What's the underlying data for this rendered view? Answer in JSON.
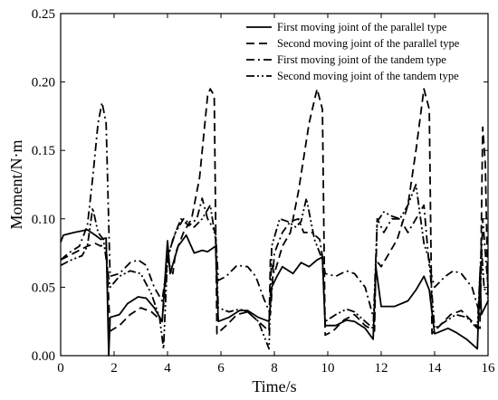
{
  "chart_data": {
    "type": "line",
    "xlabel": "Time/s",
    "ylabel": "Moment/N·m",
    "xlim": [
      0,
      16
    ],
    "ylim": [
      0,
      0.25
    ],
    "xticks": [
      "0",
      "2",
      "4",
      "6",
      "8",
      "10",
      "12",
      "14",
      "16"
    ],
    "yticks": [
      "0.00",
      "0.05",
      "0.10",
      "0.15",
      "0.20",
      "0.25"
    ],
    "grid": false,
    "legend_position": "top-right",
    "series": [
      {
        "name": "First moving joint of the parallel type",
        "style": "solid",
        "points": [
          [
            0,
            0.083
          ],
          [
            0.1,
            0.088
          ],
          [
            0.5,
            0.09
          ],
          [
            1.0,
            0.092
          ],
          [
            1.3,
            0.088
          ],
          [
            1.5,
            0.085
          ],
          [
            1.7,
            0.086
          ],
          [
            1.8,
            0.0
          ],
          [
            1.85,
            0.028
          ],
          [
            2.2,
            0.03
          ],
          [
            2.5,
            0.038
          ],
          [
            2.9,
            0.043
          ],
          [
            3.2,
            0.042
          ],
          [
            3.5,
            0.035
          ],
          [
            3.8,
            0.025
          ],
          [
            4.0,
            0.084
          ],
          [
            4.1,
            0.06
          ],
          [
            4.4,
            0.08
          ],
          [
            4.7,
            0.088
          ],
          [
            5.0,
            0.075
          ],
          [
            5.3,
            0.077
          ],
          [
            5.5,
            0.076
          ],
          [
            5.8,
            0.08
          ],
          [
            5.9,
            0.025
          ],
          [
            6.3,
            0.028
          ],
          [
            6.7,
            0.033
          ],
          [
            7.0,
            0.033
          ],
          [
            7.4,
            0.028
          ],
          [
            7.8,
            0.025
          ],
          [
            7.9,
            0.05
          ],
          [
            8.1,
            0.058
          ],
          [
            8.3,
            0.065
          ],
          [
            8.7,
            0.06
          ],
          [
            9.0,
            0.068
          ],
          [
            9.3,
            0.065
          ],
          [
            9.6,
            0.07
          ],
          [
            9.8,
            0.072
          ],
          [
            9.9,
            0.022
          ],
          [
            10.3,
            0.022
          ],
          [
            10.7,
            0.026
          ],
          [
            11.0,
            0.025
          ],
          [
            11.4,
            0.02
          ],
          [
            11.7,
            0.012
          ],
          [
            11.8,
            0.065
          ],
          [
            12.0,
            0.036
          ],
          [
            12.5,
            0.036
          ],
          [
            13.0,
            0.04
          ],
          [
            13.3,
            0.048
          ],
          [
            13.6,
            0.058
          ],
          [
            13.8,
            0.048
          ],
          [
            14.0,
            0.016
          ],
          [
            14.5,
            0.02
          ],
          [
            14.8,
            0.017
          ],
          [
            15.2,
            0.012
          ],
          [
            15.6,
            0.005
          ],
          [
            15.7,
            0.06
          ],
          [
            15.75,
            0.03
          ],
          [
            16,
            0.04
          ]
        ]
      },
      {
        "name": "Second moving joint of the parallel type",
        "style": "dash",
        "points": [
          [
            0,
            0.07
          ],
          [
            0.5,
            0.075
          ],
          [
            1.0,
            0.08
          ],
          [
            1.3,
            0.082
          ],
          [
            1.5,
            0.08
          ],
          [
            1.7,
            0.083
          ],
          [
            1.85,
            0.018
          ],
          [
            2.2,
            0.022
          ],
          [
            2.6,
            0.03
          ],
          [
            3.0,
            0.035
          ],
          [
            3.4,
            0.032
          ],
          [
            3.8,
            0.025
          ],
          [
            4.0,
            0.07
          ],
          [
            4.2,
            0.06
          ],
          [
            4.3,
            0.075
          ],
          [
            4.6,
            0.09
          ],
          [
            4.9,
            0.1
          ],
          [
            5.2,
            0.13
          ],
          [
            5.5,
            0.19
          ],
          [
            5.6,
            0.195
          ],
          [
            5.75,
            0.19
          ],
          [
            5.85,
            0.016
          ],
          [
            6.2,
            0.022
          ],
          [
            6.6,
            0.03
          ],
          [
            7.0,
            0.032
          ],
          [
            7.4,
            0.025
          ],
          [
            7.8,
            0.018
          ],
          [
            7.85,
            0.07
          ],
          [
            8.0,
            0.06
          ],
          [
            8.3,
            0.08
          ],
          [
            8.6,
            0.09
          ],
          [
            8.9,
            0.12
          ],
          [
            9.3,
            0.17
          ],
          [
            9.6,
            0.195
          ],
          [
            9.8,
            0.18
          ],
          [
            9.9,
            0.015
          ],
          [
            10.2,
            0.018
          ],
          [
            10.6,
            0.026
          ],
          [
            11.0,
            0.03
          ],
          [
            11.4,
            0.022
          ],
          [
            11.75,
            0.018
          ],
          [
            11.8,
            0.07
          ],
          [
            12.0,
            0.065
          ],
          [
            12.3,
            0.075
          ],
          [
            12.6,
            0.085
          ],
          [
            13.0,
            0.11
          ],
          [
            13.3,
            0.15
          ],
          [
            13.6,
            0.195
          ],
          [
            13.8,
            0.18
          ],
          [
            13.9,
            0.016
          ],
          [
            14.2,
            0.022
          ],
          [
            14.6,
            0.03
          ],
          [
            15.0,
            0.033
          ],
          [
            15.4,
            0.025
          ],
          [
            15.7,
            0.02
          ],
          [
            15.8,
            0.167
          ],
          [
            15.9,
            0.14
          ],
          [
            16,
            0.04
          ]
        ]
      },
      {
        "name": "First moving joint of the tandem type",
        "style": "dashdot",
        "points": [
          [
            0,
            0.07
          ],
          [
            0.3,
            0.075
          ],
          [
            0.7,
            0.08
          ],
          [
            1.0,
            0.095
          ],
          [
            1.2,
            0.13
          ],
          [
            1.4,
            0.17
          ],
          [
            1.55,
            0.185
          ],
          [
            1.7,
            0.17
          ],
          [
            1.85,
            0.058
          ],
          [
            2.2,
            0.06
          ],
          [
            2.6,
            0.068
          ],
          [
            2.9,
            0.07
          ],
          [
            3.2,
            0.066
          ],
          [
            3.5,
            0.05
          ],
          [
            3.8,
            0.04
          ],
          [
            4.0,
            0.07
          ],
          [
            4.2,
            0.085
          ],
          [
            4.5,
            0.1
          ],
          [
            4.8,
            0.095
          ],
          [
            5.1,
            0.1
          ],
          [
            5.3,
            0.115
          ],
          [
            5.5,
            0.1
          ],
          [
            5.8,
            0.09
          ],
          [
            5.9,
            0.055
          ],
          [
            6.2,
            0.058
          ],
          [
            6.6,
            0.066
          ],
          [
            7.0,
            0.065
          ],
          [
            7.3,
            0.058
          ],
          [
            7.6,
            0.042
          ],
          [
            7.85,
            0.03
          ],
          [
            8.0,
            0.075
          ],
          [
            8.3,
            0.09
          ],
          [
            8.6,
            0.098
          ],
          [
            8.9,
            0.1
          ],
          [
            9.1,
            0.09
          ],
          [
            9.4,
            0.09
          ],
          [
            9.7,
            0.085
          ],
          [
            9.9,
            0.06
          ],
          [
            10.3,
            0.058
          ],
          [
            10.7,
            0.062
          ],
          [
            11.0,
            0.06
          ],
          [
            11.4,
            0.05
          ],
          [
            11.75,
            0.025
          ],
          [
            11.85,
            0.1
          ],
          [
            12.1,
            0.09
          ],
          [
            12.4,
            0.1
          ],
          [
            12.7,
            0.1
          ],
          [
            13.0,
            0.09
          ],
          [
            13.3,
            0.1
          ],
          [
            13.6,
            0.11
          ],
          [
            13.8,
            0.065
          ],
          [
            14.0,
            0.05
          ],
          [
            14.4,
            0.058
          ],
          [
            14.7,
            0.062
          ],
          [
            15.0,
            0.06
          ],
          [
            15.4,
            0.05
          ],
          [
            15.7,
            0.03
          ],
          [
            15.8,
            0.1
          ],
          [
            16,
            0.05
          ]
        ]
      },
      {
        "name": "Second moving joint of the tandem type",
        "style": "dashdotdot",
        "points": [
          [
            0,
            0.066
          ],
          [
            0.4,
            0.07
          ],
          [
            0.8,
            0.073
          ],
          [
            1.0,
            0.08
          ],
          [
            1.2,
            0.108
          ],
          [
            1.4,
            0.09
          ],
          [
            1.6,
            0.085
          ],
          [
            1.85,
            0.05
          ],
          [
            2.2,
            0.058
          ],
          [
            2.6,
            0.062
          ],
          [
            3.0,
            0.06
          ],
          [
            3.4,
            0.045
          ],
          [
            3.7,
            0.028
          ],
          [
            3.85,
            0.005
          ],
          [
            4.0,
            0.072
          ],
          [
            4.3,
            0.09
          ],
          [
            4.6,
            0.1
          ],
          [
            5.0,
            0.094
          ],
          [
            5.3,
            0.1
          ],
          [
            5.6,
            0.11
          ],
          [
            5.8,
            0.085
          ],
          [
            5.9,
            0.035
          ],
          [
            6.3,
            0.032
          ],
          [
            6.7,
            0.034
          ],
          [
            7.0,
            0.032
          ],
          [
            7.4,
            0.025
          ],
          [
            7.8,
            0.005
          ],
          [
            7.9,
            0.08
          ],
          [
            8.2,
            0.1
          ],
          [
            8.5,
            0.098
          ],
          [
            8.8,
            0.094
          ],
          [
            9.0,
            0.098
          ],
          [
            9.2,
            0.115
          ],
          [
            9.5,
            0.085
          ],
          [
            9.8,
            0.07
          ],
          [
            9.9,
            0.025
          ],
          [
            10.3,
            0.03
          ],
          [
            10.7,
            0.034
          ],
          [
            11.0,
            0.032
          ],
          [
            11.4,
            0.025
          ],
          [
            11.7,
            0.02
          ],
          [
            11.85,
            0.098
          ],
          [
            12.1,
            0.105
          ],
          [
            12.4,
            0.102
          ],
          [
            12.7,
            0.1
          ],
          [
            13.0,
            0.11
          ],
          [
            13.3,
            0.125
          ],
          [
            13.6,
            0.082
          ],
          [
            13.8,
            0.07
          ],
          [
            14.0,
            0.02
          ],
          [
            14.4,
            0.025
          ],
          [
            14.8,
            0.03
          ],
          [
            15.2,
            0.028
          ],
          [
            15.6,
            0.02
          ],
          [
            15.75,
            0.08
          ],
          [
            15.85,
            0.05
          ],
          [
            16,
            0.042
          ]
        ]
      }
    ]
  }
}
